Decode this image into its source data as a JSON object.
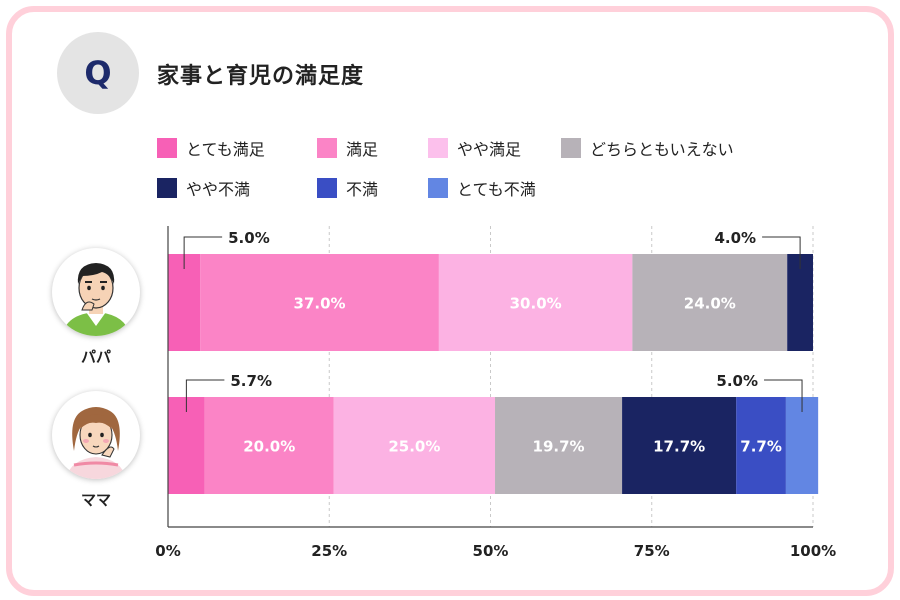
{
  "header": {
    "q_badge": "Q",
    "title": "家事と育児の満足度"
  },
  "chart_data": {
    "type": "stacked-bar-horizontal",
    "title": "家事と育児の満足度",
    "categories": [
      "パパ",
      "ママ"
    ],
    "series": [
      {
        "name": "とても満足",
        "color": "#f760b6",
        "values": [
          5.0,
          5.7
        ],
        "labels": [
          "5.0%",
          "5.7%"
        ]
      },
      {
        "name": "満足",
        "color": "#fb84c6",
        "values": [
          37.0,
          20.0
        ],
        "labels": [
          "37.0%",
          "20.0%"
        ]
      },
      {
        "name": "やや満足",
        "color": "#fcb2e3",
        "values": [
          30.0,
          25.0
        ],
        "labels": [
          "30.0%",
          "25.0%"
        ]
      },
      {
        "name": "どちらともいえない",
        "color": "#b7b2b8",
        "values": [
          24.0,
          19.7
        ],
        "labels": [
          "24.0%",
          "19.7%"
        ]
      },
      {
        "name": "やや不満",
        "color": "#1a2462",
        "values": [
          4.0,
          17.7
        ],
        "labels": [
          "4.0%",
          "17.7%"
        ]
      },
      {
        "name": "不満",
        "color": "#3a4ec4",
        "values": [
          0,
          7.7
        ],
        "labels": [
          "",
          "7.7%"
        ]
      },
      {
        "name": "とても不満",
        "color": "#6286e3",
        "values": [
          0,
          5.0
        ],
        "labels": [
          "",
          "5.0%"
        ]
      }
    ],
    "callouts": [
      {
        "row": 0,
        "series": 0,
        "text": "5.0%",
        "side": "left"
      },
      {
        "row": 0,
        "series": 4,
        "text": "4.0%",
        "side": "right"
      },
      {
        "row": 1,
        "series": 0,
        "text": "5.7%",
        "side": "left"
      },
      {
        "row": 1,
        "series": 6,
        "text": "5.0%",
        "side": "right"
      }
    ],
    "inline_labels": [
      {
        "row": 0,
        "series": 1,
        "text": "37.0%"
      },
      {
        "row": 0,
        "series": 2,
        "text": "30.0%"
      },
      {
        "row": 0,
        "series": 3,
        "text": "24.0%"
      },
      {
        "row": 1,
        "series": 1,
        "text": "20.0%"
      },
      {
        "row": 1,
        "series": 2,
        "text": "25.0%"
      },
      {
        "row": 1,
        "series": 3,
        "text": "19.7%"
      },
      {
        "row": 1,
        "series": 4,
        "text": "17.7%"
      },
      {
        "row": 1,
        "series": 5,
        "text": "7.7%"
      }
    ],
    "xticks": [
      "0%",
      "25%",
      "50%",
      "75%",
      "100%"
    ],
    "xlim": [
      0,
      100
    ],
    "legend_position": "top"
  },
  "rows": [
    {
      "label": "パパ",
      "avatar": "dad-avatar"
    },
    {
      "label": "ママ",
      "avatar": "mom-avatar"
    }
  ]
}
